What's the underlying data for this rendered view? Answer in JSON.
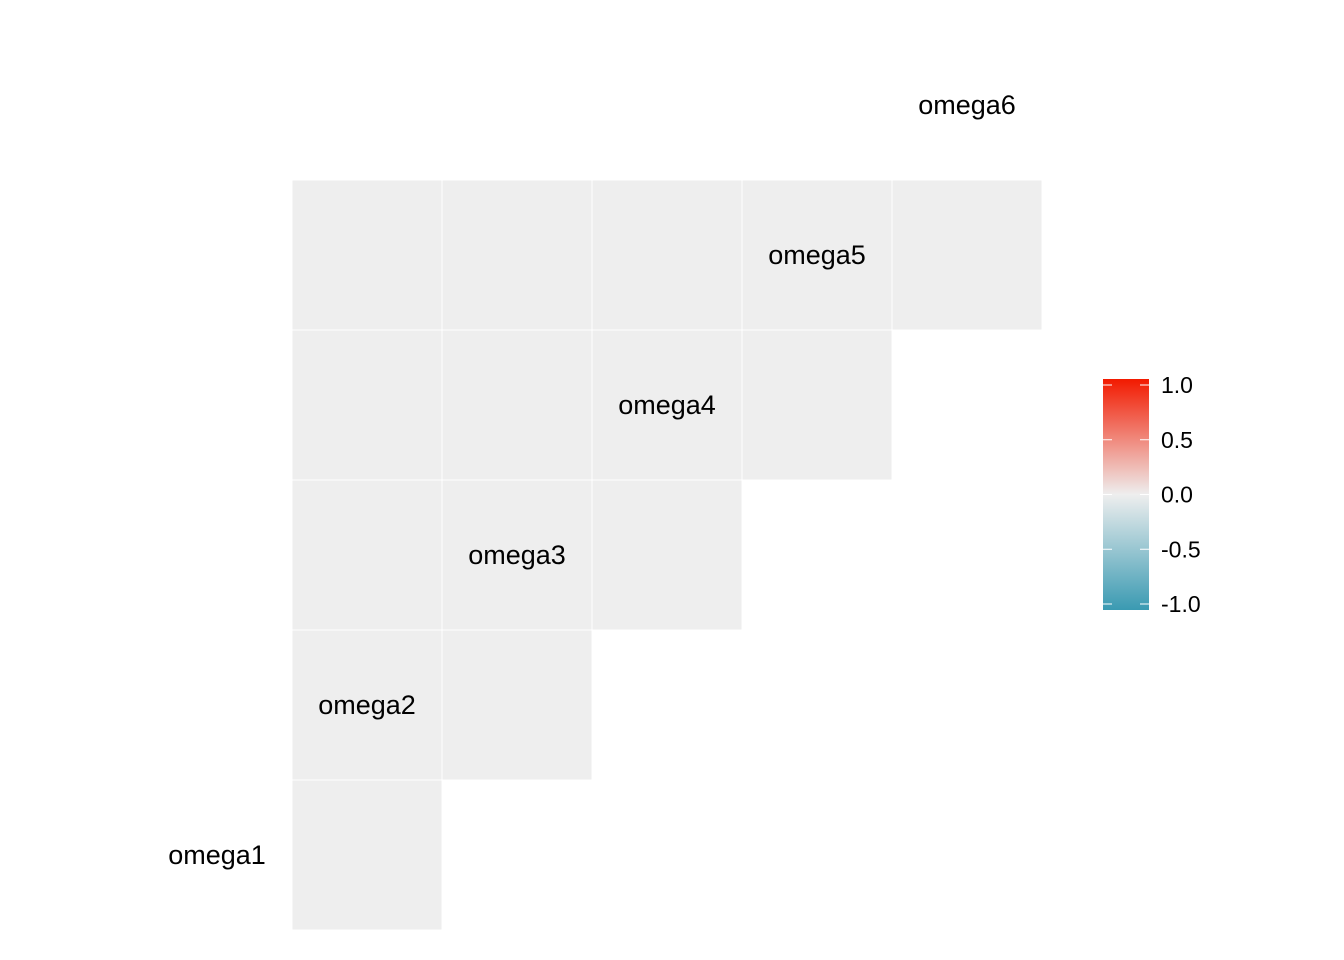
{
  "chart_data": {
    "type": "heatmap",
    "title": "",
    "xlabel": "",
    "ylabel": "",
    "variables": [
      "omega1",
      "omega2",
      "omega3",
      "omega4",
      "omega5",
      "omega6"
    ],
    "layout": "lower-triangle",
    "cells": [
      {
        "row": "omega2",
        "col": "omega1",
        "value": null
      },
      {
        "row": "omega3",
        "col": "omega1",
        "value": null
      },
      {
        "row": "omega3",
        "col": "omega2",
        "value": null
      },
      {
        "row": "omega4",
        "col": "omega1",
        "value": null
      },
      {
        "row": "omega4",
        "col": "omega2",
        "value": null
      },
      {
        "row": "omega4",
        "col": "omega3",
        "value": null
      },
      {
        "row": "omega5",
        "col": "omega1",
        "value": null
      },
      {
        "row": "omega5",
        "col": "omega2",
        "value": null
      },
      {
        "row": "omega5",
        "col": "omega3",
        "value": null
      },
      {
        "row": "omega5",
        "col": "omega4",
        "value": null
      },
      {
        "row": "omega6",
        "col": "omega1",
        "value": null
      },
      {
        "row": "omega6",
        "col": "omega2",
        "value": null
      },
      {
        "row": "omega6",
        "col": "omega3",
        "value": null
      },
      {
        "row": "omega6",
        "col": "omega4",
        "value": null
      },
      {
        "row": "omega6",
        "col": "omega5",
        "value": null
      }
    ],
    "na_color": "#eeeeee",
    "color_scale": {
      "low": "#3a9ab2",
      "mid": "#eeeeee",
      "high": "#f21a00",
      "limits": [
        -1.0,
        1.0
      ],
      "ticks": [
        1.0,
        0.5,
        0.0,
        -0.5,
        -1.0
      ],
      "tick_labels": [
        "1.0",
        "0.5",
        "0.0",
        "-0.5",
        "-1.0"
      ]
    },
    "legend_position": "right",
    "grid": false
  }
}
